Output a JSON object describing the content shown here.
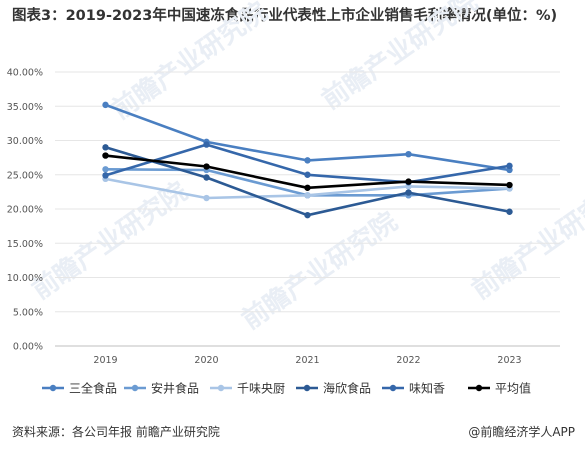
{
  "title": "图表3：2019-2023年中国速冻食品行业代表性上市企业销售毛利率情况(单位：%)",
  "chart_data": {
    "type": "line",
    "title": "图表3：2019-2023年中国速冻食品行业代表性上市企业销售毛利率情况(单位：%)",
    "x": [
      "2019",
      "2020",
      "2021",
      "2022",
      "2023"
    ],
    "ylim": [
      0,
      40
    ],
    "yticks": [
      "0.00%",
      "5.00%",
      "10.00%",
      "15.00%",
      "20.00%",
      "25.00%",
      "30.00%",
      "35.00%",
      "40.00%"
    ],
    "legend_position": "bottom",
    "grid": "horizontal",
    "series": [
      {
        "name": "三全食品",
        "color": "#4a7fc1",
        "values": [
          35.2,
          29.8,
          27.1,
          28.0,
          25.7
        ]
      },
      {
        "name": "安井食品",
        "color": "#6b9bd2",
        "values": [
          25.8,
          25.7,
          22.0,
          22.0,
          23.0
        ]
      },
      {
        "name": "千味央厨",
        "color": "#a9c5e6",
        "values": [
          24.4,
          21.6,
          22.0,
          23.3,
          23.0
        ]
      },
      {
        "name": "海欣食品",
        "color": "#2c5a94",
        "values": [
          29.0,
          24.6,
          19.1,
          22.4,
          19.6
        ]
      },
      {
        "name": "味知香",
        "color": "#3567aa",
        "values": [
          24.9,
          29.4,
          25.0,
          23.9,
          26.3
        ]
      },
      {
        "name": "平均值",
        "color": "#000000",
        "values": [
          27.8,
          26.2,
          23.1,
          24.0,
          23.5
        ]
      }
    ]
  },
  "watermark": "前瞻产业研究院",
  "footer": {
    "source": "资料来源：各公司年报 前瞻产业研究院",
    "credit": "@前瞻经济学人APP"
  }
}
